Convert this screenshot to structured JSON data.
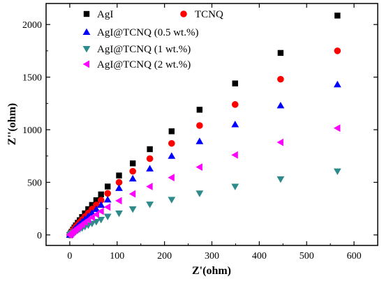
{
  "chart_data": {
    "type": "scatter",
    "title": "",
    "xlabel": "Z'(ohm)",
    "ylabel": "Z''(ohm)",
    "xlim": [
      -50,
      650
    ],
    "ylim": [
      -100,
      2200
    ],
    "xticks": [
      0,
      100,
      200,
      300,
      400,
      500,
      600
    ],
    "yticks": [
      0,
      500,
      1000,
      1500,
      2000
    ],
    "grid": false,
    "legend_position": "top-left",
    "series": [
      {
        "name": "AgI",
        "marker": "square",
        "color": "#000000",
        "x": [
          0,
          2,
          4,
          7,
          10,
          13,
          17,
          21,
          26,
          32,
          39,
          47,
          56,
          66,
          80,
          104,
          133,
          169,
          215,
          274,
          349,
          445,
          565
        ],
        "y": [
          0,
          15,
          30,
          50,
          70,
          90,
          115,
          140,
          170,
          205,
          245,
          285,
          330,
          385,
          460,
          565,
          680,
          815,
          985,
          1190,
          1440,
          1730,
          2085
        ]
      },
      {
        "name": "TCNQ",
        "marker": "circle",
        "color": "#ff0000",
        "x": [
          0,
          2,
          4,
          7,
          10,
          13,
          17,
          21,
          26,
          32,
          39,
          47,
          56,
          66,
          80,
          104,
          133,
          169,
          215,
          274,
          349,
          445,
          565
        ],
        "y": [
          0,
          13,
          26,
          44,
          60,
          78,
          98,
          120,
          145,
          175,
          208,
          245,
          285,
          330,
          395,
          500,
          605,
          725,
          870,
          1040,
          1240,
          1480,
          1750
        ]
      },
      {
        "name": "AgI@TCNQ (0.5 wt.%)",
        "marker": "triangle-up",
        "color": "#0000ff",
        "x": [
          0,
          2,
          4,
          7,
          10,
          13,
          17,
          21,
          26,
          32,
          39,
          47,
          56,
          66,
          80,
          104,
          133,
          169,
          215,
          274,
          349,
          445,
          565
        ],
        "y": [
          0,
          11,
          22,
          38,
          52,
          67,
          85,
          103,
          125,
          150,
          178,
          210,
          245,
          285,
          335,
          445,
          535,
          630,
          750,
          890,
          1050,
          1230,
          1430
        ]
      },
      {
        "name": "AgI@TCNQ (1 wt.%)",
        "marker": "triangle-down",
        "color": "#2e8b8b",
        "x": [
          0,
          2,
          4,
          7,
          10,
          13,
          17,
          21,
          26,
          32,
          39,
          47,
          56,
          66,
          80,
          104,
          133,
          169,
          215,
          274,
          349,
          445,
          565
        ],
        "y": [
          0,
          6,
          12,
          20,
          28,
          35,
          45,
          55,
          65,
          78,
          92,
          108,
          125,
          145,
          175,
          205,
          245,
          290,
          335,
          395,
          460,
          530,
          605
        ]
      },
      {
        "name": "AgI@TCNQ (2 wt.%)",
        "marker": "triangle-left",
        "color": "#ff00ff",
        "x": [
          0,
          2,
          4,
          7,
          10,
          13,
          17,
          21,
          26,
          32,
          39,
          47,
          56,
          66,
          80,
          104,
          133,
          169,
          215,
          274,
          349,
          445,
          565
        ],
        "y": [
          0,
          9,
          18,
          30,
          42,
          54,
          68,
          83,
          100,
          120,
          142,
          168,
          195,
          225,
          265,
          325,
          390,
          460,
          545,
          645,
          760,
          880,
          1015
        ]
      }
    ]
  }
}
